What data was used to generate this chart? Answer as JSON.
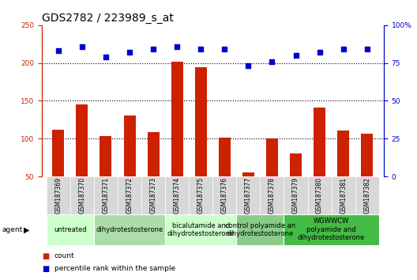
{
  "title": "GDS2782 / 223989_s_at",
  "samples": [
    "GSM187369",
    "GSM187370",
    "GSM187371",
    "GSM187372",
    "GSM187373",
    "GSM187374",
    "GSM187375",
    "GSM187376",
    "GSM187377",
    "GSM187378",
    "GSM187379",
    "GSM187380",
    "GSM187381",
    "GSM187382"
  ],
  "counts": [
    112,
    145,
    103,
    131,
    109,
    202,
    194,
    101,
    55,
    100,
    80,
    141,
    111,
    106
  ],
  "percentile": [
    83,
    86,
    79,
    82,
    84,
    86,
    84,
    84,
    73,
    76,
    80,
    82,
    84,
    84
  ],
  "ylim_left": [
    50,
    250
  ],
  "ylim_right": [
    0,
    100
  ],
  "yticks_left": [
    50,
    100,
    150,
    200,
    250
  ],
  "yticks_right": [
    0,
    25,
    50,
    75,
    100
  ],
  "ytick_labels_right": [
    "0",
    "25",
    "50",
    "75",
    "100%"
  ],
  "bar_color": "#cc2200",
  "dot_color": "#0000cc",
  "bar_width": 0.5,
  "gridlines": [
    100,
    150,
    200
  ],
  "group_defs": [
    {
      "start": 0,
      "end": 2,
      "label": "untreated",
      "color": "#ccffcc"
    },
    {
      "start": 2,
      "end": 5,
      "label": "dihydrotestosterone",
      "color": "#aaddaa"
    },
    {
      "start": 5,
      "end": 8,
      "label": "bicalutamide and\ndihydrotestosterone",
      "color": "#ccffcc"
    },
    {
      "start": 8,
      "end": 10,
      "label": "control polyamide an\ndihydrotestosterone",
      "color": "#88cc88"
    },
    {
      "start": 10,
      "end": 14,
      "label": "WGWWCW\npolyamide and\ndihydrotestosterone",
      "color": "#44bb44"
    }
  ],
  "left_axis_color": "#cc2200",
  "right_axis_color": "#0000cc",
  "title_fontsize": 10,
  "tick_fontsize": 6.5,
  "group_fontsize": 6
}
